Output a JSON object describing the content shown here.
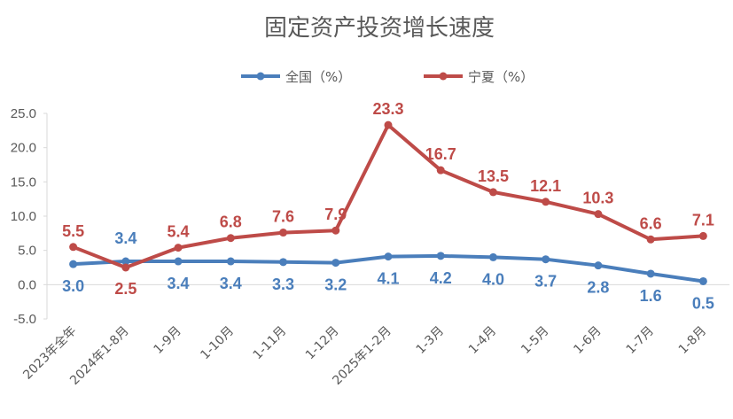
{
  "chart_data": {
    "type": "line",
    "title": "固定资产投资增长速度",
    "xlabel": "",
    "ylabel": "",
    "categories": [
      "2023年全年",
      "2024年1-8月",
      "1-9月",
      "1-10月",
      "1-11月",
      "1-12月",
      "2025年1-2月",
      "1-3月",
      "1-4月",
      "1-5月",
      "1-6月",
      "1-7月",
      "1-8月"
    ],
    "series": [
      {
        "name": "全国（%）",
        "color": "#4a7ebb",
        "values": [
          3.0,
          3.4,
          3.4,
          3.4,
          3.3,
          3.2,
          4.1,
          4.2,
          4.0,
          3.7,
          2.8,
          1.6,
          0.5
        ],
        "labels": [
          "3.0",
          "3.4",
          "3.4",
          "3.4",
          "3.3",
          "3.2",
          "4.1",
          "4.2",
          "4.0",
          "3.7",
          "2.8",
          "1.6",
          "0.5"
        ]
      },
      {
        "name": "宁夏（%）",
        "color": "#be4b48",
        "values": [
          5.5,
          2.5,
          5.4,
          6.8,
          7.6,
          7.9,
          23.3,
          16.7,
          13.5,
          12.1,
          10.3,
          6.6,
          7.1
        ],
        "labels": [
          "5.5",
          "2.5",
          "5.4",
          "6.8",
          "7.6",
          "7.9",
          "23.3",
          "16.7",
          "13.5",
          "12.1",
          "10.3",
          "6.6",
          "7.1"
        ]
      }
    ],
    "ylim": [
      -5.0,
      25.0
    ],
    "yticks": [
      "25.0",
      "20.0",
      "15.0",
      "10.0",
      "5.0",
      "0.0",
      "-5.0"
    ],
    "ytick_values": [
      25,
      20,
      15,
      10,
      5,
      0,
      -5
    ],
    "grid": false,
    "legend": "top"
  }
}
